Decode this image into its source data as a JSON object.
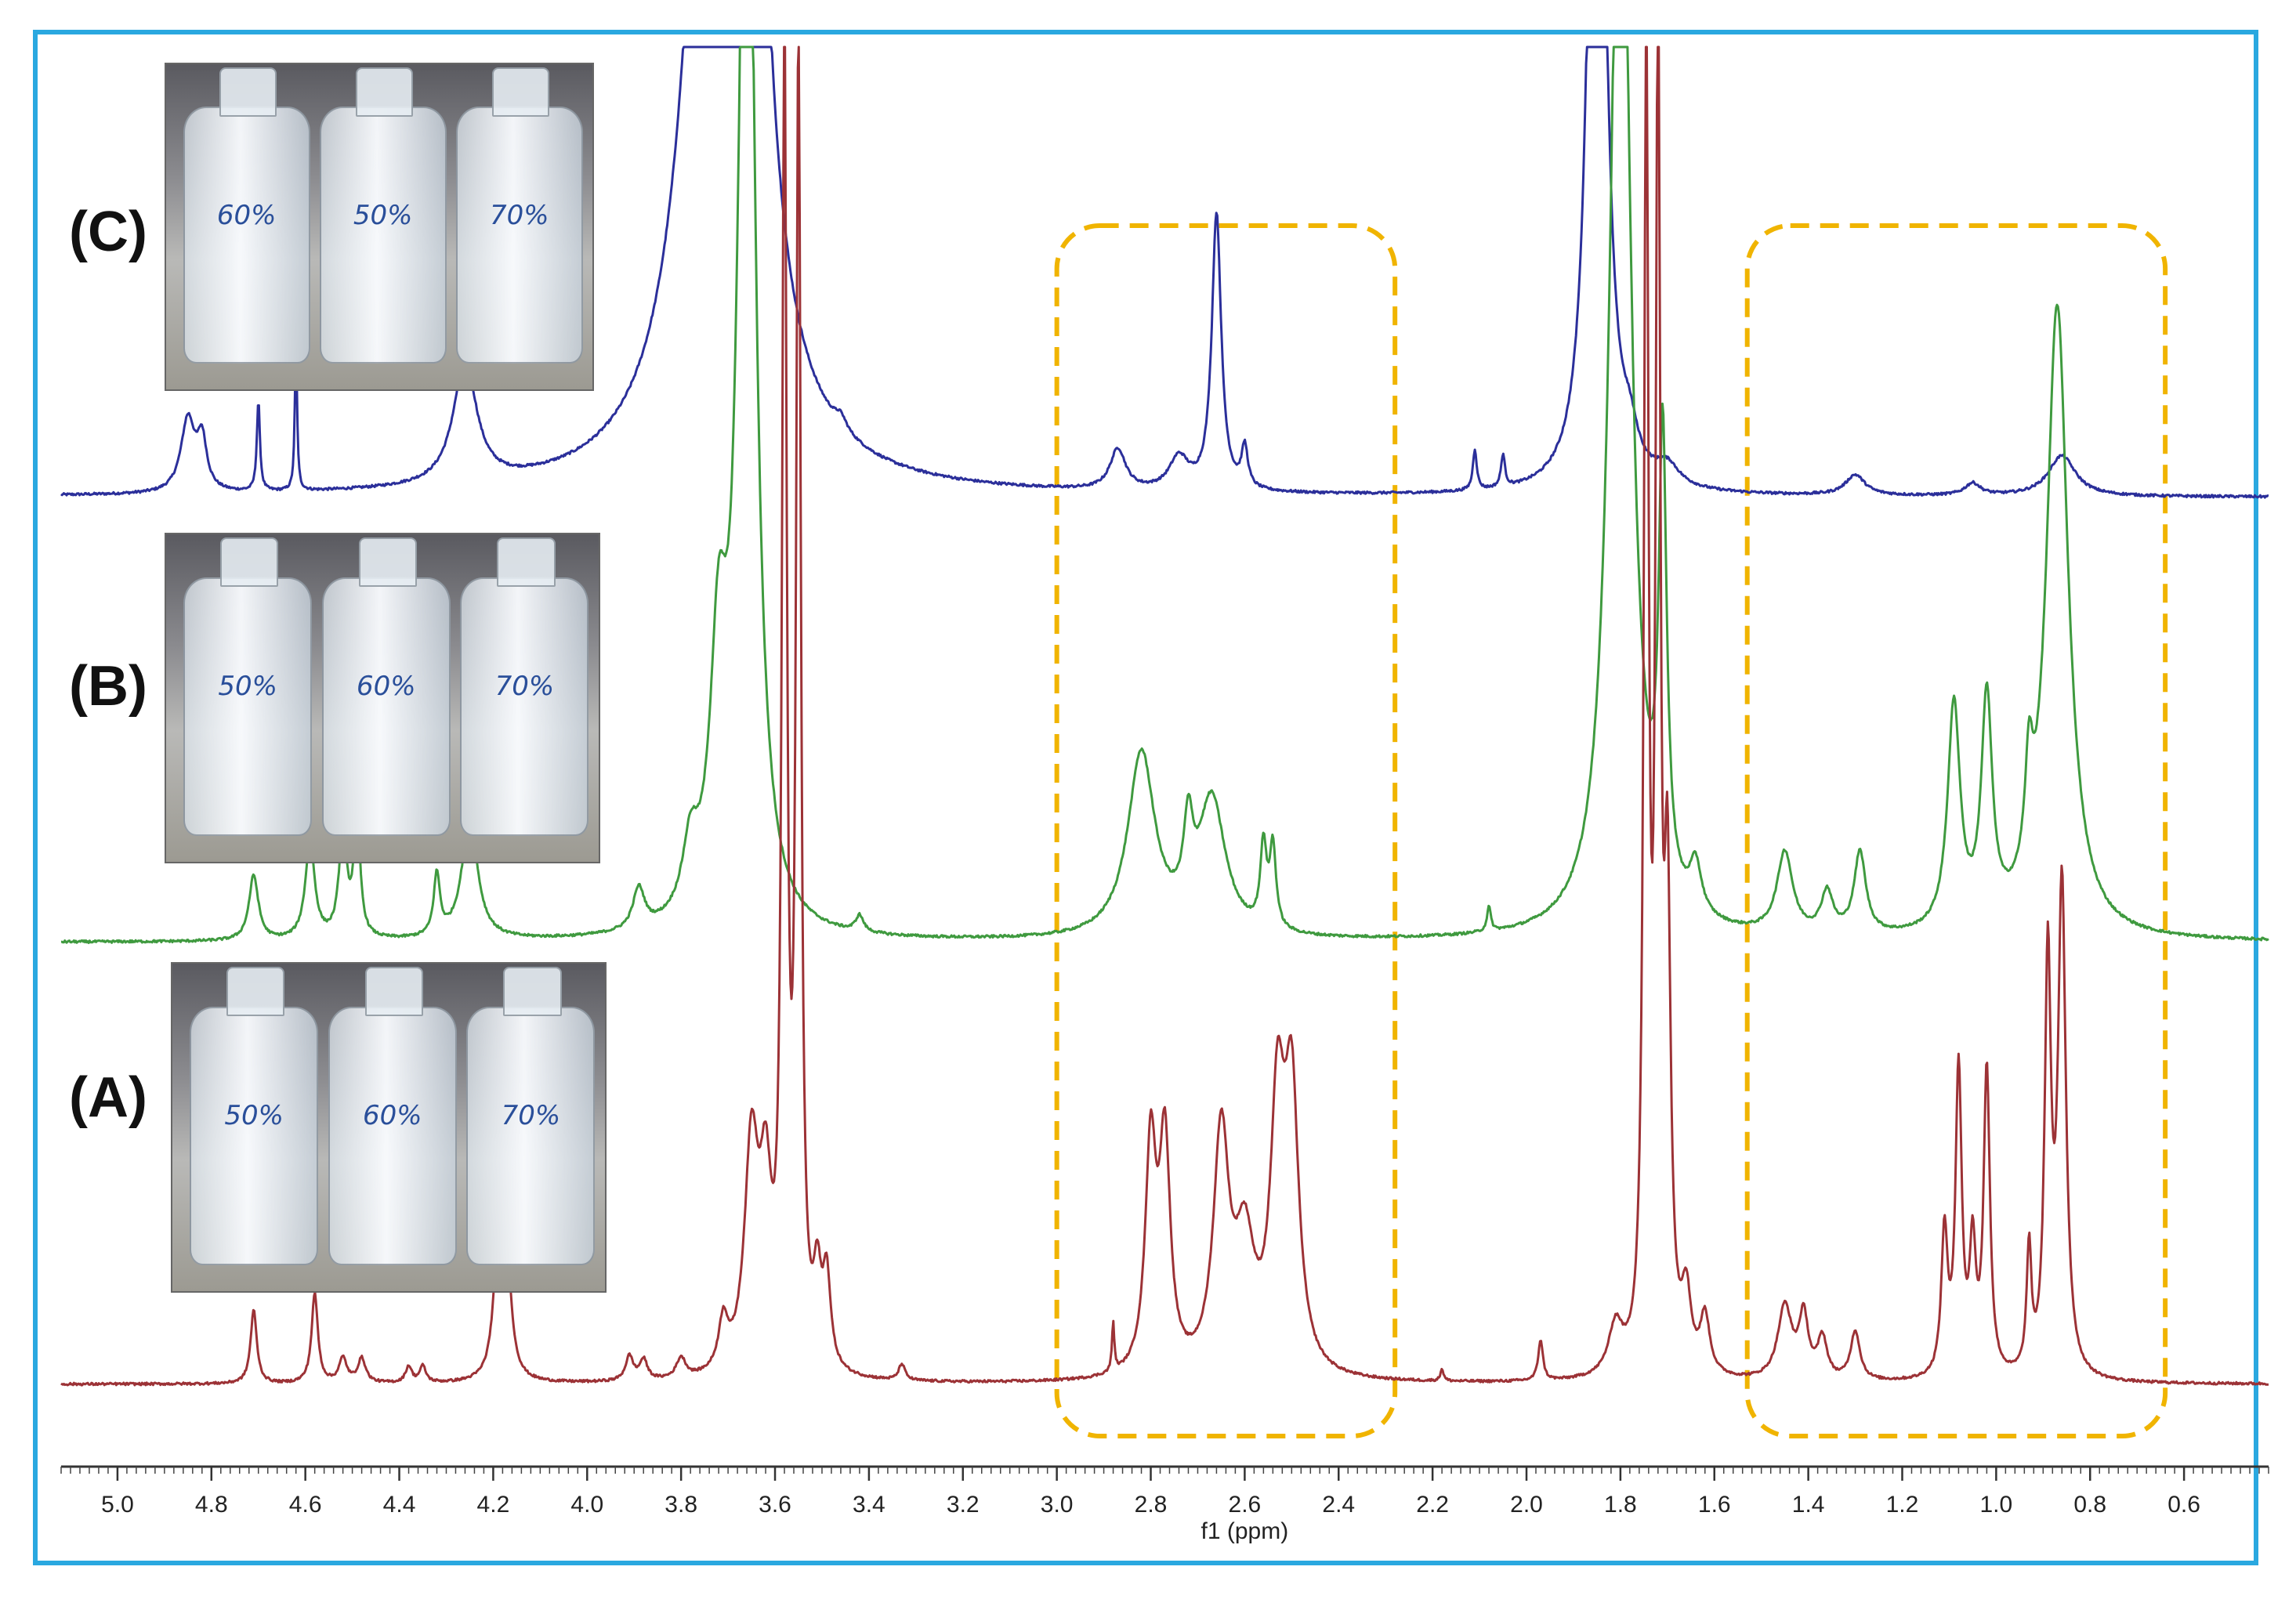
{
  "chart_data": {
    "type": "line",
    "xlabel": "f1 (ppm)",
    "xlim": [
      5.12,
      0.42
    ],
    "x_ticks": [
      "5.0",
      "4.8",
      "4.6",
      "4.4",
      "4.2",
      "4.0",
      "3.8",
      "3.6",
      "3.4",
      "3.2",
      "3.0",
      "2.8",
      "2.6",
      "2.4",
      "2.2",
      "2.0",
      "1.8",
      "1.6",
      "1.4",
      "1.2",
      "1.0",
      "0.8",
      "0.6"
    ],
    "panels": [
      {
        "id": "C",
        "label": "(C)",
        "vial_labels": [
          "60%",
          "50%",
          "70%"
        ]
      },
      {
        "id": "B",
        "label": "(B)",
        "vial_labels": [
          "50%",
          "60%",
          "70%"
        ]
      },
      {
        "id": "A",
        "label": "(A)",
        "vial_labels": [
          "50%",
          "60%",
          "70%"
        ]
      }
    ],
    "highlight_regions": [
      {
        "x_from": 3.0,
        "x_to": 2.28,
        "color": "#f0b400"
      },
      {
        "x_from": 1.53,
        "x_to": 0.64,
        "color": "#f0b400"
      }
    ],
    "series": [
      {
        "id": "C",
        "color": "#2b2f9a",
        "baseline": 0.0,
        "peaks": [
          [
            4.85,
            0.18,
            0.018
          ],
          [
            4.82,
            0.12,
            0.012
          ],
          [
            4.7,
            0.22,
            0.004
          ],
          [
            4.62,
            0.35,
            0.003
          ],
          [
            4.26,
            0.3,
            0.03
          ],
          [
            3.72,
            2.6,
            0.06
          ],
          [
            3.66,
            2.2,
            0.03
          ],
          [
            3.46,
            0.03,
            0.015
          ],
          [
            2.87,
            0.1,
            0.02
          ],
          [
            2.74,
            0.08,
            0.025
          ],
          [
            2.66,
            0.68,
            0.012
          ],
          [
            2.6,
            0.1,
            0.008
          ],
          [
            2.11,
            0.1,
            0.005
          ],
          [
            2.05,
            0.08,
            0.005
          ],
          [
            1.85,
            2.8,
            0.018
          ],
          [
            1.78,
            0.08,
            0.02
          ],
          [
            1.7,
            0.05,
            0.03
          ],
          [
            1.3,
            0.05,
            0.025
          ],
          [
            1.05,
            0.03,
            0.02
          ],
          [
            0.86,
            0.1,
            0.035
          ]
        ]
      },
      {
        "id": "B",
        "color": "#3f9a3f",
        "baseline": 0.0,
        "peaks": [
          [
            4.71,
            0.16,
            0.012
          ],
          [
            4.59,
            0.24,
            0.012
          ],
          [
            4.52,
            0.26,
            0.01
          ],
          [
            4.49,
            0.3,
            0.008
          ],
          [
            4.32,
            0.15,
            0.008
          ],
          [
            4.25,
            0.3,
            0.02
          ],
          [
            3.89,
            0.1,
            0.015
          ],
          [
            3.78,
            0.16,
            0.02
          ],
          [
            3.72,
            0.6,
            0.022
          ],
          [
            3.66,
            3.2,
            0.02
          ],
          [
            3.42,
            0.04,
            0.01
          ],
          [
            2.82,
            0.45,
            0.035
          ],
          [
            2.72,
            0.2,
            0.012
          ],
          [
            2.67,
            0.33,
            0.035
          ],
          [
            2.56,
            0.2,
            0.008
          ],
          [
            2.54,
            0.2,
            0.008
          ],
          [
            2.08,
            0.06,
            0.005
          ],
          [
            1.8,
            3.0,
            0.025
          ],
          [
            1.71,
            1.1,
            0.01
          ],
          [
            1.64,
            0.12,
            0.015
          ],
          [
            1.45,
            0.2,
            0.02
          ],
          [
            1.36,
            0.1,
            0.015
          ],
          [
            1.29,
            0.2,
            0.015
          ],
          [
            1.09,
            0.55,
            0.016
          ],
          [
            1.02,
            0.55,
            0.014
          ],
          [
            0.93,
            0.25,
            0.01
          ],
          [
            0.87,
            1.55,
            0.028
          ]
        ]
      },
      {
        "id": "A",
        "color": "#9c3236",
        "baseline": 0.0,
        "peaks": [
          [
            4.71,
            0.18,
            0.008
          ],
          [
            4.58,
            0.22,
            0.008
          ],
          [
            4.52,
            0.06,
            0.01
          ],
          [
            4.48,
            0.06,
            0.01
          ],
          [
            4.38,
            0.04,
            0.008
          ],
          [
            4.35,
            0.04,
            0.008
          ],
          [
            4.19,
            0.3,
            0.012
          ],
          [
            4.17,
            0.24,
            0.012
          ],
          [
            3.91,
            0.06,
            0.01
          ],
          [
            3.88,
            0.05,
            0.01
          ],
          [
            3.8,
            0.05,
            0.012
          ],
          [
            3.71,
            0.12,
            0.012
          ],
          [
            3.65,
            0.55,
            0.018
          ],
          [
            3.62,
            0.4,
            0.015
          ],
          [
            3.58,
            3.2,
            0.006
          ],
          [
            3.55,
            3.2,
            0.006
          ],
          [
            3.51,
            0.2,
            0.01
          ],
          [
            3.49,
            0.22,
            0.01
          ],
          [
            3.33,
            0.04,
            0.008
          ],
          [
            2.88,
            0.12,
            0.003
          ],
          [
            2.8,
            0.55,
            0.014
          ],
          [
            2.77,
            0.55,
            0.014
          ],
          [
            2.65,
            0.58,
            0.02
          ],
          [
            2.6,
            0.3,
            0.025
          ],
          [
            2.53,
            0.62,
            0.018
          ],
          [
            2.5,
            0.65,
            0.018
          ],
          [
            2.18,
            0.03,
            0.004
          ],
          [
            1.97,
            0.1,
            0.006
          ],
          [
            1.81,
            0.12,
            0.018
          ],
          [
            1.745,
            3.2,
            0.006
          ],
          [
            1.72,
            3.2,
            0.006
          ],
          [
            1.7,
            1.1,
            0.008
          ],
          [
            1.66,
            0.18,
            0.012
          ],
          [
            1.62,
            0.14,
            0.012
          ],
          [
            1.45,
            0.18,
            0.018
          ],
          [
            1.41,
            0.15,
            0.012
          ],
          [
            1.37,
            0.1,
            0.012
          ],
          [
            1.3,
            0.12,
            0.012
          ],
          [
            1.11,
            0.35,
            0.008
          ],
          [
            1.08,
            0.75,
            0.008
          ],
          [
            1.05,
            0.3,
            0.008
          ],
          [
            1.02,
            0.75,
            0.008
          ],
          [
            0.93,
            0.3,
            0.006
          ],
          [
            0.89,
            1.0,
            0.008
          ],
          [
            0.86,
            1.2,
            0.01
          ]
        ]
      }
    ]
  }
}
